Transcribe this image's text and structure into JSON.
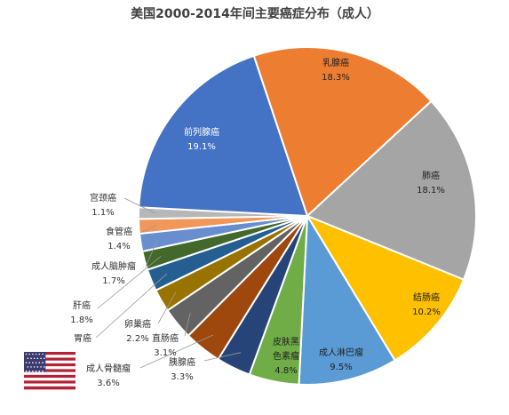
{
  "chart_data": {
    "type": "pie",
    "title": "美国2000-2014年间主要癌症分布（成人）",
    "slices": [
      {
        "name": "乳腺癌",
        "value_text": "18.3%",
        "value": 18.3,
        "color": "#ED7D31"
      },
      {
        "name": "肺癌",
        "value_text": "18.1%",
        "value": 18.1,
        "color": "#A5A5A5"
      },
      {
        "name": "结肠癌",
        "value_text": "10.2%",
        "value": 10.2,
        "color": "#FFC000"
      },
      {
        "name": "成人淋巴瘤",
        "value_text": "9.5%",
        "value": 9.5,
        "color": "#5B9BD5"
      },
      {
        "name": "皮肤黑色素瘤",
        "name_lines": [
          "皮肤黑",
          "色素瘤"
        ],
        "value_text": "4.8%",
        "value": 4.8,
        "color": "#70AD47"
      },
      {
        "name": "胰腺癌",
        "value_text": "3.3%",
        "value": 3.3,
        "color": "#264478"
      },
      {
        "name": "成人骨髓瘤",
        "value_text": "3.6%",
        "value": 3.6,
        "color": "#9E480E"
      },
      {
        "name": "直肠癌",
        "value_text": "3.1%",
        "value": 3.1,
        "color": "#636363"
      },
      {
        "name": "卵巢癌",
        "value_text": "2.2%",
        "value": 2.2,
        "color": "#997300"
      },
      {
        "name": "胃癌",
        "value_text": "",
        "value": 2.1,
        "color": "#255E91"
      },
      {
        "name": "肝癌",
        "value_text": "1.8%",
        "value": 1.8,
        "color": "#43682B"
      },
      {
        "name": "成人脑肿瘤",
        "value_text": "1.7%",
        "value": 1.7,
        "color": "#698ED0"
      },
      {
        "name": "食管癌",
        "value_text": "1.4%",
        "value": 1.4,
        "color": "#F1975A"
      },
      {
        "name": "宫颈癌",
        "value_text": "1.1%",
        "value": 1.1,
        "color": "#B7B7B7"
      },
      {
        "name": "前列腺癌",
        "value_text": "19.1%",
        "value": 19.1,
        "color": "#4472C4"
      }
    ]
  },
  "flag": {
    "description_icon": "us-flag-icon",
    "colors": {
      "red": "#B22234",
      "white": "#FFFFFF",
      "blue": "#3C3B6E"
    }
  }
}
